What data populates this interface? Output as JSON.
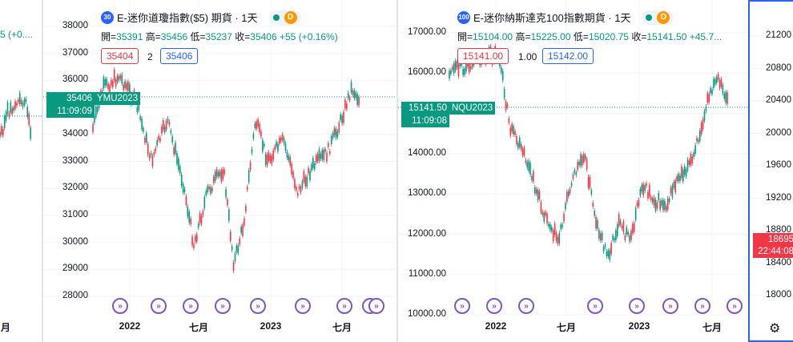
{
  "left_pane": {
    "partial_change": "5 (+0....",
    "x_label": "月"
  },
  "chart1": {
    "badge": "30",
    "title": "E-迷你道瓊指數($5) 期貨 · 1天",
    "status_dot_color": "#089981",
    "d_badge": "D",
    "ohlc": {
      "open_label": "開",
      "open": "35391",
      "high_label": "高",
      "high": "35456",
      "low_label": "低",
      "low": "35237",
      "close_label": "收",
      "close": "35406",
      "change": "+55 (+0.16%)"
    },
    "sell_price": "35404",
    "qty": "2",
    "buy_price": "35406",
    "price_tag": "35406",
    "countdown": "11:09:09",
    "symbol_tag": "YMU2023",
    "y_ticks": [
      "38000",
      "37000",
      "36000",
      "35000",
      "34000",
      "33000",
      "32000",
      "31000",
      "30000",
      "29000",
      "28000"
    ],
    "x_ticks": [
      "2022",
      "七月",
      "2023",
      "七月"
    ]
  },
  "chart2": {
    "badge": "100",
    "title": "E-迷你納斯達克100指數期貨 · 1天",
    "status_dot_color": "#089981",
    "d_badge": "D",
    "ohlc": {
      "open_label": "開",
      "open": "15104.00",
      "high_label": "高",
      "high": "15225.00",
      "low_label": "低",
      "low": "15020.75",
      "close_label": "收",
      "close": "15141.50",
      "change": "+45.7..."
    },
    "sell_price": "15141.00",
    "qty": "1.00",
    "buy_price": "15142.00",
    "price_tag": "15141.50",
    "countdown": "11:09:08",
    "symbol_tag": "NQU2023",
    "y_ticks": [
      "17000.00",
      "16000.00",
      "15000.00",
      "14000.00",
      "13000.00",
      "12000.00",
      "11000.00",
      "10000.00"
    ],
    "x_ticks": [
      "2022",
      "七月",
      "2023",
      "七月"
    ]
  },
  "right_pane": {
    "y_ticks": [
      "21200",
      "20800",
      "20400",
      "20000",
      "19600",
      "19200",
      "18800",
      "18400",
      "18000"
    ],
    "price_tag": "18695",
    "countdown": "22:44:08",
    "settings_icon": "gear-icon"
  },
  "event_icon": "fast-forward-icon",
  "colors": {
    "up": "#089981",
    "down": "#f23645",
    "event": "#7e57c2",
    "active_border": "#2962ff"
  }
}
